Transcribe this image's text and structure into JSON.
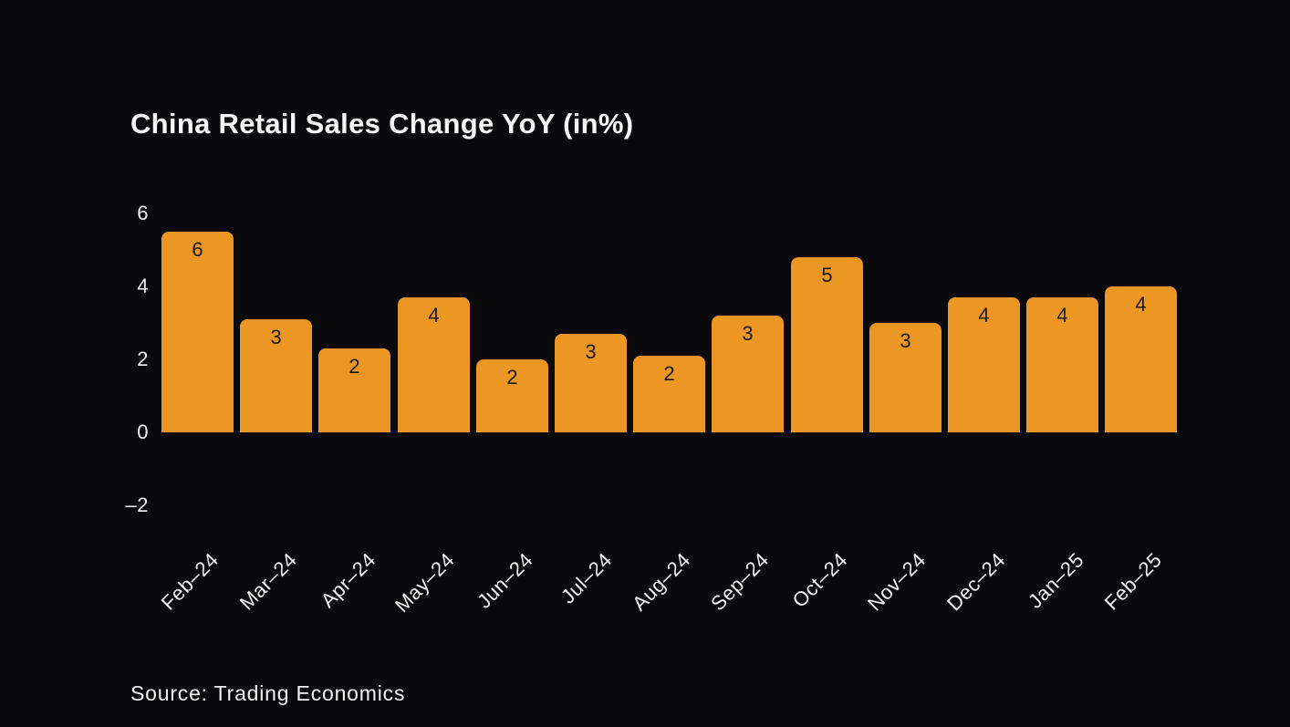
{
  "source_label": "Source: Trading Economics",
  "colors": {
    "background": "#0A0A0C",
    "bar": "#EC9723",
    "bar_label": "#1A1A1A",
    "axis_text": "#F2F2F2",
    "title_text": "#F7F7F7"
  },
  "chart_data": {
    "type": "bar",
    "title": "China Retail Sales Change YoY (in%)",
    "categories": [
      "Feb–24",
      "Mar–24",
      "Apr–24",
      "May–24",
      "Jun–24",
      "Jul–24",
      "Aug–24",
      "Sep–24",
      "Oct–24",
      "Nov–24",
      "Dec–24",
      "Jan–25",
      "Feb–25"
    ],
    "values": [
      5.5,
      3.1,
      2.3,
      3.7,
      2.0,
      2.7,
      2.1,
      3.2,
      4.8,
      3.0,
      3.7,
      3.7,
      4.0
    ],
    "bar_labels": [
      "6",
      "3",
      "2",
      "4",
      "2",
      "3",
      "2",
      "3",
      "5",
      "3",
      "4",
      "4",
      "4"
    ],
    "yticks": [
      {
        "label": "6",
        "value": 6
      },
      {
        "label": "4",
        "value": 4
      },
      {
        "label": "2",
        "value": 2
      },
      {
        "label": "0",
        "value": 0
      },
      {
        "label": "–2",
        "value": -2
      }
    ],
    "ylim": [
      -2,
      6
    ],
    "xlabel": "",
    "ylabel": "",
    "grid": false,
    "legend": "none",
    "bar_label_position": "inside-top",
    "source": "Source: Trading Economics"
  }
}
